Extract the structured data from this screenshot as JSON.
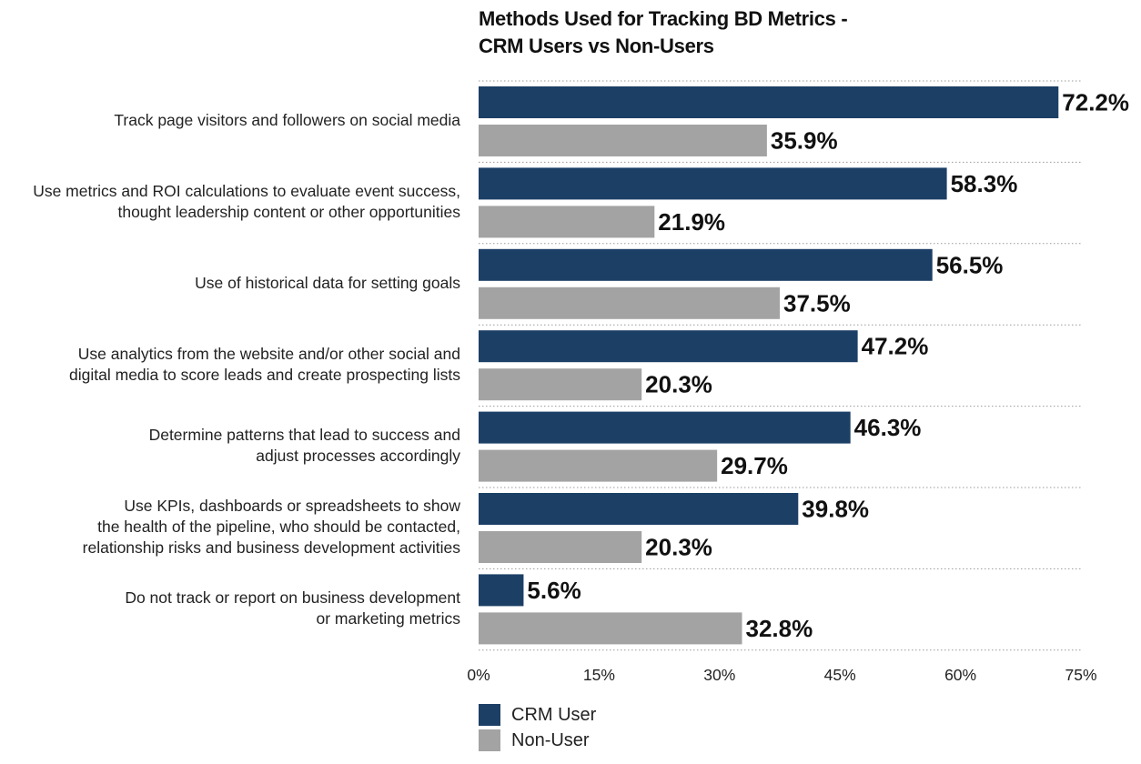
{
  "chart_data": {
    "type": "bar",
    "orientation": "horizontal",
    "title": "Methods Used for Tracking BD Metrics -\nCRM Users vs Non-Users",
    "categories": [
      "Track page visitors and followers on social media",
      "Use metrics and ROI calculations to evaluate event success,\nthought leadership content or other opportunities",
      "Use of historical data for setting goals",
      "Use analytics from the website and/or other social and\ndigital media to score leads and create prospecting lists",
      "Determine patterns that lead to success and\nadjust processes accordingly",
      "Use KPIs, dashboards or spreadsheets to show\nthe health of the pipeline, who should be contacted,\nrelationship risks and business development activities",
      "Do not track or report on business development\nor marketing metrics"
    ],
    "series": [
      {
        "name": "CRM User",
        "color": "#1c3f66",
        "values": [
          72.2,
          58.3,
          56.5,
          47.2,
          46.3,
          39.8,
          5.6
        ],
        "labels": [
          "72.2%",
          "58.3%",
          "56.5%",
          "47.2%",
          "46.3%",
          "39.8%",
          "5.6%"
        ]
      },
      {
        "name": "Non-User",
        "color": "#a3a3a3",
        "values": [
          35.9,
          21.9,
          37.5,
          20.3,
          29.7,
          20.3,
          32.8
        ],
        "labels": [
          "35.9%",
          "21.9%",
          "37.5%",
          "20.3%",
          "29.7%",
          "20.3%",
          "32.8%"
        ]
      }
    ],
    "xlim": [
      0,
      75
    ],
    "xticks": [
      0,
      15,
      30,
      45,
      60,
      75
    ],
    "xtick_labels": [
      "0%",
      "15%",
      "30%",
      "45%",
      "60%",
      "75%"
    ],
    "grid": "dotted separators between categories",
    "legend": "bottom-left"
  }
}
